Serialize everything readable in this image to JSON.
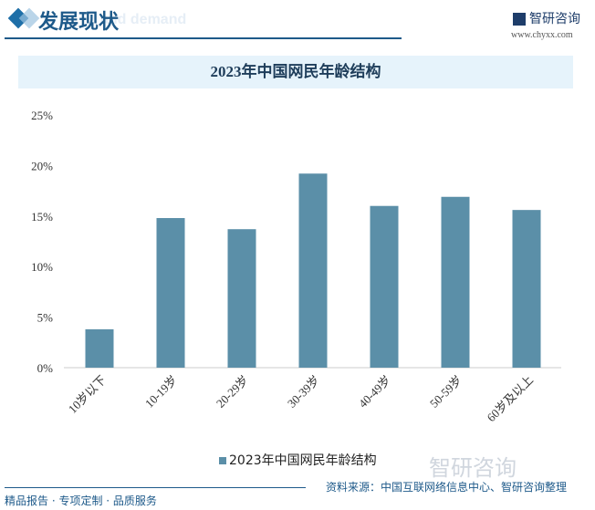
{
  "header": {
    "section_title": "发展现状",
    "ghost_text": "and demand",
    "brand": "智研咨询",
    "url": "www.chyxx.com"
  },
  "footer": {
    "source": "资料来源：中国互联网络信息中心、智研咨询整理",
    "slogan": "精品报告 · 专项定制 · 品质服务"
  },
  "colors": {
    "bar": "#5b8fa8",
    "accent": "#1e5a8a"
  },
  "chart_data": {
    "type": "bar",
    "title": "2023年中国网民年龄结构",
    "categories": [
      "10岁以下",
      "10-19岁",
      "20-29岁",
      "30-39岁",
      "40-49岁",
      "50-59岁",
      "60岁及以上"
    ],
    "series": [
      {
        "name": "2023年中国网民年龄结构",
        "values": [
          3.8,
          14.8,
          13.7,
          19.2,
          16.0,
          16.9,
          15.6
        ]
      }
    ],
    "yticks": [
      "0%",
      "5%",
      "10%",
      "15%",
      "20%",
      "25%"
    ],
    "ylim": [
      0,
      25
    ],
    "unit": "%",
    "grid": false,
    "legend": "bottom"
  }
}
